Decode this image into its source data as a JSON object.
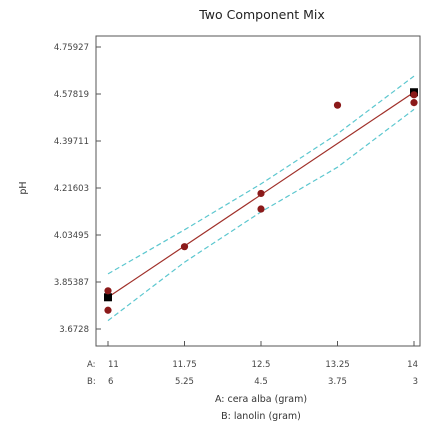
{
  "chart_data": {
    "type": "scatter",
    "title": "Two Component Mix",
    "ylabel": "pH",
    "xlabel_line1": "A: cera alba (gram)",
    "xlabel_line2": "B: lanolin (gram)",
    "x_row_prefix_a": "A:",
    "x_row_prefix_b": "B:",
    "x_ticks": [
      {
        "a": "11",
        "b": "6"
      },
      {
        "a": "11.75",
        "b": "5.25"
      },
      {
        "a": "12.5",
        "b": "4.5"
      },
      {
        "a": "13.25",
        "b": "3.75"
      },
      {
        "a": "14",
        "b": "3"
      }
    ],
    "xlim": [
      11,
      14
    ],
    "y_ticks": [
      "4.75927",
      "4.57819",
      "4.39711",
      "4.21603",
      "4.03495",
      "3.85387",
      "3.6728"
    ],
    "ylim": [
      3.6728,
      4.75927
    ],
    "grid": false,
    "series": [
      {
        "points": [
          {
            "x": 11,
            "y": 3.82
          },
          {
            "x": 11,
            "y": 3.745
          },
          {
            "x": 11.75,
            "y": 3.99
          },
          {
            "x": 12.5,
            "y": 4.195
          },
          {
            "x": 12.5,
            "y": 4.135
          },
          {
            "x": 13.25,
            "y": 4.535
          },
          {
            "x": 14,
            "y": 4.575
          },
          {
            "x": 14,
            "y": 4.545
          }
        ]
      }
    ],
    "design_points": [
      {
        "x": 11,
        "y": 3.795
      },
      {
        "x": 14,
        "y": 4.585
      }
    ],
    "fit_line": {
      "x": [
        11,
        14
      ],
      "y": [
        3.795,
        4.585
      ]
    },
    "ci_upper": {
      "x": [
        11,
        11.75,
        12.5,
        13.25,
        14
      ],
      "y": [
        3.885,
        4.055,
        4.232,
        4.425,
        4.647
      ]
    },
    "ci_lower": {
      "x": [
        11,
        11.75,
        12.5,
        13.25,
        14
      ],
      "y": [
        3.705,
        3.93,
        4.124,
        4.296,
        4.519
      ]
    },
    "colors": {
      "points": "#8b1a1a",
      "design_points": "#000000",
      "fit_line": "#a0302a",
      "ci": "#5cc7cf",
      "axes": "#555555"
    }
  }
}
